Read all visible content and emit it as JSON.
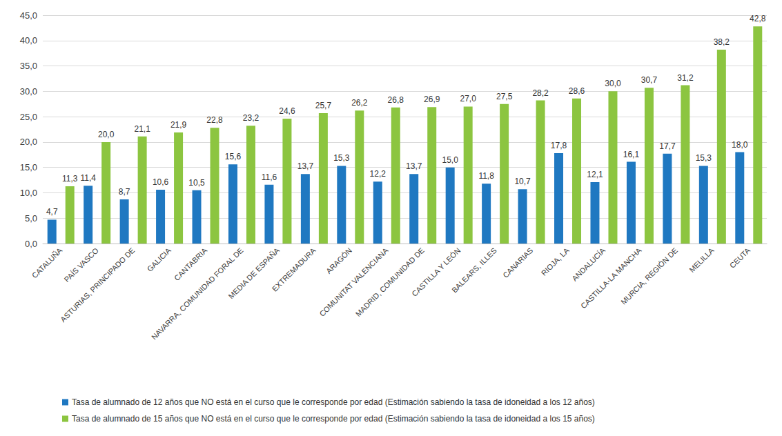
{
  "chart_data": {
    "type": "bar",
    "categories": [
      "CATALUÑA",
      "PAÍS VASCO",
      "ASTURIAS, PRINCIPADO DE",
      "GALICIA",
      "CANTABRIA",
      "NAVARRA, COMUNIDAD FORAL DE",
      "MEDIA DE ESPAÑA",
      "EXTREMADURA",
      "ARAGÓN",
      "COMUNITAT VALENCIANA",
      "MADRID, COMUNIDAD DE",
      "CASTILLA Y LEÓN",
      "BALEARS, ILLES",
      "CANARIAS",
      "RIOJA, LA",
      "ANDALUCÍA",
      "CASTILLA-LA MANCHA",
      "MURCIA, REGIÓN DE",
      "MELILLA",
      "CEUTA"
    ],
    "series": [
      {
        "name": "Tasa de alumnado de 12 años que NO está en el curso que le corresponde por edad (Estimación sabiendo la tasa de idoneidad a los 12 años)",
        "color": "#1f78c1",
        "values": [
          4.7,
          11.4,
          8.7,
          10.6,
          10.5,
          15.6,
          11.6,
          13.7,
          15.3,
          12.2,
          13.7,
          15.0,
          11.8,
          10.7,
          17.8,
          12.1,
          16.1,
          17.7,
          15.3,
          18.0
        ],
        "value_labels": [
          "4,7",
          "11,4",
          "8,7",
          "10,6",
          "10,5",
          "15,6",
          "11,6",
          "13,7",
          "15,3",
          "12,2",
          "13,7",
          "15,0",
          "11,8",
          "10,7",
          "17,8",
          "12,1",
          "16,1",
          "17,7",
          "15,3",
          "18,0"
        ]
      },
      {
        "name": "Tasa de alumnado de 15 años que NO está en el curso que le corresponde por edad (Estimación sabiendo la tasa de idoneidad a los 15 años)",
        "color": "#8cc540",
        "values": [
          11.3,
          20.0,
          21.1,
          21.9,
          22.8,
          23.2,
          24.6,
          25.7,
          26.2,
          26.8,
          26.9,
          27.0,
          27.5,
          28.2,
          28.6,
          30.0,
          30.7,
          31.2,
          38.2,
          42.8
        ],
        "value_labels": [
          "11,3",
          "20,0",
          "21,1",
          "21,9",
          "22,8",
          "23,2",
          "24,6",
          "25,7",
          "26,2",
          "26,8",
          "26,9",
          "27,0",
          "27,5",
          "28,2",
          "28,6",
          "30,0",
          "30,7",
          "31,2",
          "38,2",
          "42,8"
        ]
      }
    ],
    "ylim": [
      0,
      45
    ],
    "yticks": [
      {
        "value": 0,
        "label": "0,0"
      },
      {
        "value": 5,
        "label": "5,0"
      },
      {
        "value": 10,
        "label": "10,0"
      },
      {
        "value": 15,
        "label": "15,0"
      },
      {
        "value": 20,
        "label": "20,0"
      },
      {
        "value": 25,
        "label": "25,0"
      },
      {
        "value": 30,
        "label": "30,0"
      },
      {
        "value": 35,
        "label": "35,0"
      },
      {
        "value": 40,
        "label": "40,0"
      },
      {
        "value": 45,
        "label": "45,0"
      }
    ],
    "grid": true,
    "legend": "bottom",
    "data_labels": true
  }
}
